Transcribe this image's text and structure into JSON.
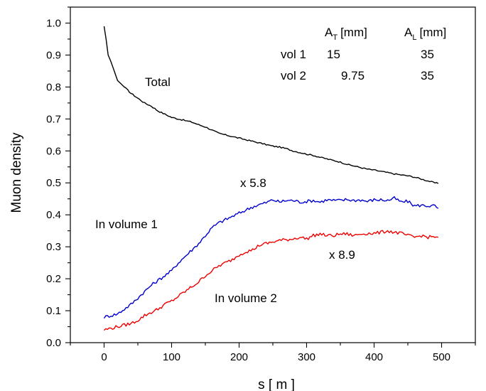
{
  "chart_data": {
    "type": "line",
    "xlabel": "s  [ m ]",
    "ylabel": "Muon density",
    "xlim": [
      -50,
      550
    ],
    "ylim": [
      0.0,
      1.05
    ],
    "xticks": [
      0,
      100,
      200,
      300,
      400,
      500
    ],
    "yticks": [
      0.0,
      0.1,
      0.2,
      0.3,
      0.4,
      0.5,
      0.6,
      0.7,
      0.8,
      0.9,
      1.0
    ],
    "xtick_labels": [
      "0",
      "100",
      "200",
      "300",
      "400",
      "500"
    ],
    "ytick_labels": [
      "0.0",
      "0.1",
      "0.2",
      "0.3",
      "0.4",
      "0.5",
      "0.6",
      "0.7",
      "0.8",
      "0.9",
      "1.0"
    ],
    "grid": false,
    "legend": "none",
    "series": [
      {
        "color": "#000000",
        "x": [
          0,
          3,
          6,
          10,
          15,
          20,
          25,
          30,
          40,
          50,
          60,
          70,
          80,
          90,
          100,
          110,
          120,
          130,
          140,
          150,
          160,
          170,
          180,
          190,
          200,
          210,
          220,
          230,
          240,
          250,
          260,
          270,
          280,
          290,
          300,
          310,
          320,
          330,
          340,
          350,
          360,
          370,
          380,
          390,
          400,
          410,
          420,
          430,
          440,
          450,
          460,
          470,
          480,
          490,
          495
        ],
        "y": [
          0.99,
          0.95,
          0.9,
          0.88,
          0.85,
          0.82,
          0.81,
          0.8,
          0.78,
          0.765,
          0.75,
          0.74,
          0.725,
          0.715,
          0.705,
          0.7,
          0.695,
          0.69,
          0.682,
          0.675,
          0.665,
          0.655,
          0.65,
          0.645,
          0.64,
          0.635,
          0.63,
          0.625,
          0.62,
          0.615,
          0.612,
          0.607,
          0.6,
          0.595,
          0.59,
          0.586,
          0.58,
          0.575,
          0.57,
          0.565,
          0.558,
          0.553,
          0.548,
          0.543,
          0.54,
          0.536,
          0.532,
          0.528,
          0.525,
          0.522,
          0.518,
          0.512,
          0.506,
          0.5,
          0.498
        ]
      },
      {
        "color": "#0000cc",
        "x": [
          0,
          10,
          20,
          30,
          40,
          50,
          60,
          70,
          80,
          90,
          100,
          110,
          120,
          130,
          140,
          150,
          160,
          170,
          180,
          190,
          200,
          210,
          220,
          230,
          240,
          250,
          260,
          270,
          280,
          290,
          300,
          310,
          320,
          330,
          340,
          350,
          360,
          370,
          380,
          390,
          400,
          410,
          420,
          430,
          440,
          450,
          460,
          470,
          480,
          490,
          495
        ],
        "y": [
          0.08,
          0.085,
          0.09,
          0.105,
          0.12,
          0.14,
          0.16,
          0.18,
          0.195,
          0.21,
          0.225,
          0.25,
          0.27,
          0.29,
          0.31,
          0.335,
          0.36,
          0.375,
          0.385,
          0.395,
          0.405,
          0.415,
          0.425,
          0.432,
          0.438,
          0.447,
          0.44,
          0.445,
          0.445,
          0.44,
          0.442,
          0.445,
          0.44,
          0.447,
          0.445,
          0.445,
          0.448,
          0.445,
          0.447,
          0.442,
          0.447,
          0.447,
          0.445,
          0.452,
          0.44,
          0.442,
          0.428,
          0.43,
          0.428,
          0.428,
          0.42
        ]
      },
      {
        "color": "#ee0000",
        "x": [
          0,
          10,
          20,
          30,
          40,
          50,
          60,
          70,
          80,
          90,
          100,
          110,
          120,
          130,
          140,
          150,
          160,
          170,
          180,
          190,
          200,
          210,
          220,
          230,
          240,
          250,
          260,
          270,
          280,
          290,
          300,
          310,
          320,
          330,
          340,
          350,
          360,
          370,
          380,
          390,
          400,
          410,
          420,
          430,
          440,
          450,
          460,
          470,
          480,
          490,
          495
        ],
        "y": [
          0.04,
          0.045,
          0.05,
          0.055,
          0.06,
          0.07,
          0.085,
          0.095,
          0.105,
          0.12,
          0.13,
          0.145,
          0.16,
          0.175,
          0.19,
          0.21,
          0.225,
          0.24,
          0.25,
          0.26,
          0.275,
          0.285,
          0.29,
          0.305,
          0.31,
          0.315,
          0.32,
          0.322,
          0.325,
          0.33,
          0.325,
          0.335,
          0.34,
          0.335,
          0.335,
          0.34,
          0.34,
          0.335,
          0.34,
          0.342,
          0.342,
          0.345,
          0.35,
          0.345,
          0.342,
          0.335,
          0.33,
          0.335,
          0.33,
          0.332,
          0.33
        ]
      }
    ],
    "annotations": [
      {
        "text": "Total",
        "x": 60,
        "y": 0.805
      },
      {
        "text": "x 5.8",
        "x": 190,
        "y": 0.49
      },
      {
        "text": "In volume 1",
        "x": -15,
        "y": 0.37
      },
      {
        "text": "x 8.9",
        "x": 315,
        "y": 0.265
      },
      {
        "text": "In volume 2",
        "x": 155,
        "y": 0.135
      }
    ],
    "table": {
      "col1_base": "A",
      "col1_sub": "T",
      "col1_unit": "[mm]",
      "col2_base": "A",
      "col2_sub": "L",
      "col2_unit": "[mm]",
      "rows": [
        {
          "label": "vol 1",
          "at": "15",
          "al": "35"
        },
        {
          "label": "vol 2",
          "at": "9.75",
          "al": "35"
        }
      ]
    }
  }
}
